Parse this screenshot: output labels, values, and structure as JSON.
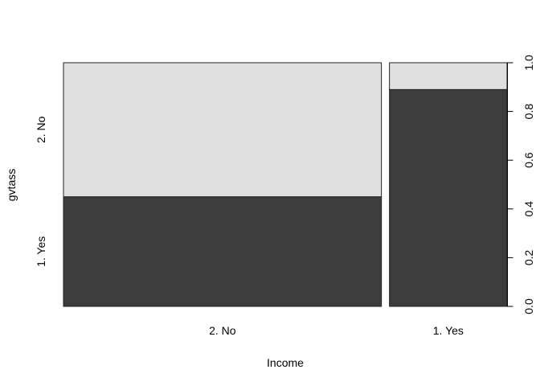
{
  "chart_data": {
    "type": "mosaic",
    "title": "",
    "xlabel": "Income",
    "ylabel": "gvtass",
    "x_categories": [
      "2. No",
      "1. Yes"
    ],
    "x_widths": [
      0.73,
      0.27
    ],
    "y_categories": [
      "1. Yes",
      "2. No"
    ],
    "fill_colors": {
      "1. Yes": "#3d3d3d",
      "2. No": "#e0e0e0"
    },
    "proportions": [
      {
        "x": "2. No",
        "values": [
          0.45,
          0.55
        ]
      },
      {
        "x": "1. Yes",
        "values": [
          0.89,
          0.11
        ]
      }
    ],
    "y_axis_right": {
      "ylim": [
        0,
        1
      ],
      "ticks": [
        0,
        0.2,
        0.4,
        0.6,
        0.8,
        1
      ],
      "tick_labels": [
        "0.0",
        "0.2",
        "0.4",
        "0.6",
        "0.8",
        "1.0"
      ]
    },
    "grid": false,
    "legend": "none"
  }
}
